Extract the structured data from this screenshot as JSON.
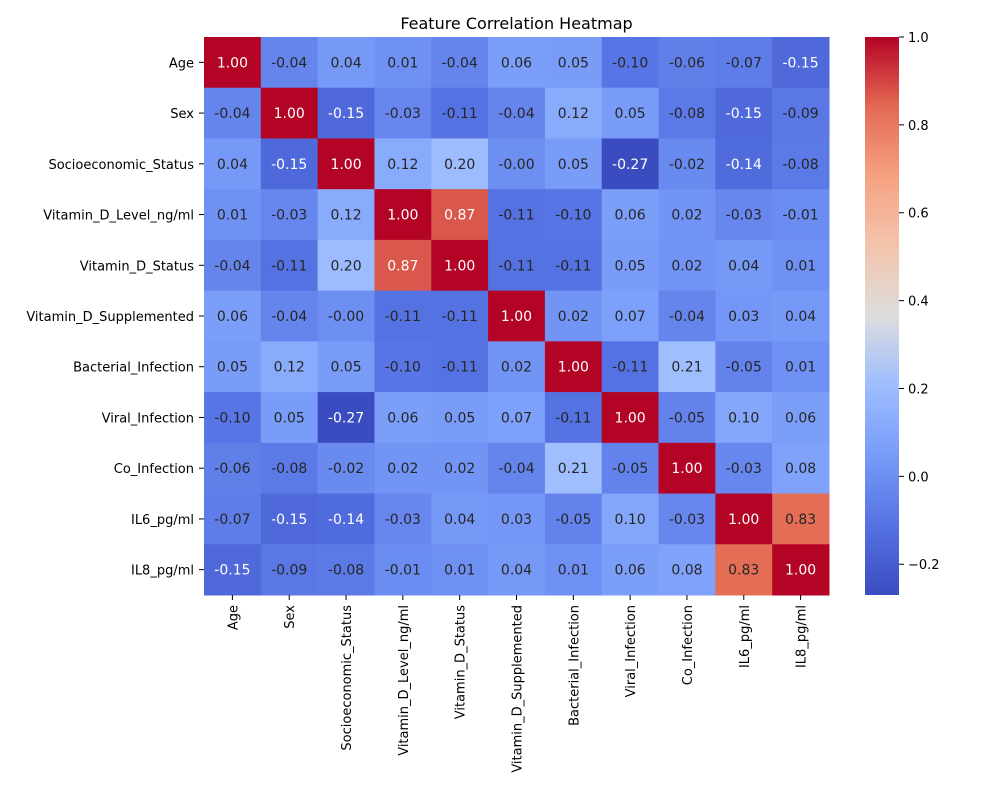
{
  "chart_data": {
    "type": "heatmap",
    "title": "Feature Correlation Heatmap",
    "xlabel": "",
    "ylabel": "",
    "colormap": "coolwarm",
    "grid": false,
    "legend": "colorbar-right",
    "colorbar_range": [
      -0.27,
      1.0
    ],
    "colorbar_ticks": [
      -0.2,
      0.0,
      0.2,
      0.4,
      0.6,
      0.8,
      1.0
    ],
    "colorbar_tick_labels": [
      "−0.2",
      "0.0",
      "0.2",
      "0.4",
      "0.6",
      "0.8",
      "1.0"
    ],
    "x_labels": [
      "Age",
      "Sex",
      "Socioeconomic_Status",
      "Vitamin_D_Level_ng/ml",
      "Vitamin_D_Status",
      "Vitamin_D_Supplemented",
      "Bacterial_Infection",
      "Viral_Infection",
      "Co_Infection",
      "IL6_pg/ml",
      "IL8_pg/ml"
    ],
    "y_labels": [
      "Age",
      "Sex",
      "Socioeconomic_Status",
      "Vitamin_D_Level_ng/ml",
      "Vitamin_D_Status",
      "Vitamin_D_Supplemented",
      "Bacterial_Infection",
      "Viral_Infection",
      "Co_Infection",
      "IL6_pg/ml",
      "IL8_pg/ml"
    ],
    "values": [
      [
        1.0,
        -0.04,
        0.04,
        0.01,
        -0.04,
        0.06,
        0.05,
        -0.1,
        -0.06,
        -0.07,
        -0.15
      ],
      [
        -0.04,
        1.0,
        -0.15,
        -0.03,
        -0.11,
        -0.04,
        0.12,
        0.05,
        -0.08,
        -0.15,
        -0.09
      ],
      [
        0.04,
        -0.15,
        1.0,
        0.12,
        0.2,
        -0.0,
        0.05,
        -0.27,
        -0.02,
        -0.14,
        -0.08
      ],
      [
        0.01,
        -0.03,
        0.12,
        1.0,
        0.87,
        -0.11,
        -0.1,
        0.06,
        0.02,
        -0.03,
        -0.01
      ],
      [
        -0.04,
        -0.11,
        0.2,
        0.87,
        1.0,
        -0.11,
        -0.11,
        0.05,
        0.02,
        0.04,
        0.01
      ],
      [
        0.06,
        -0.04,
        -0.0,
        -0.11,
        -0.11,
        1.0,
        0.02,
        0.07,
        -0.04,
        0.03,
        0.04
      ],
      [
        0.05,
        0.12,
        0.05,
        -0.1,
        -0.11,
        0.02,
        1.0,
        -0.11,
        0.21,
        -0.05,
        0.01
      ],
      [
        -0.1,
        0.05,
        -0.27,
        0.06,
        0.05,
        0.07,
        -0.11,
        1.0,
        -0.05,
        0.1,
        0.06
      ],
      [
        -0.06,
        -0.08,
        -0.02,
        0.02,
        0.02,
        -0.04,
        0.21,
        -0.05,
        1.0,
        -0.03,
        0.08
      ],
      [
        -0.07,
        -0.15,
        -0.14,
        -0.03,
        0.04,
        0.03,
        -0.05,
        0.1,
        -0.03,
        1.0,
        0.83
      ],
      [
        -0.15,
        -0.09,
        -0.08,
        -0.01,
        0.01,
        0.04,
        0.01,
        0.06,
        0.08,
        0.83,
        1.0
      ]
    ],
    "value_labels": [
      [
        "1.00",
        "-0.04",
        "0.04",
        "0.01",
        "-0.04",
        "0.06",
        "0.05",
        "-0.10",
        "-0.06",
        "-0.07",
        "-0.15"
      ],
      [
        "-0.04",
        "1.00",
        "-0.15",
        "-0.03",
        "-0.11",
        "-0.04",
        "0.12",
        "0.05",
        "-0.08",
        "-0.15",
        "-0.09"
      ],
      [
        "0.04",
        "-0.15",
        "1.00",
        "0.12",
        "0.20",
        "-0.00",
        "0.05",
        "-0.27",
        "-0.02",
        "-0.14",
        "-0.08"
      ],
      [
        "0.01",
        "-0.03",
        "0.12",
        "1.00",
        "0.87",
        "-0.11",
        "-0.10",
        "0.06",
        "0.02",
        "-0.03",
        "-0.01"
      ],
      [
        "-0.04",
        "-0.11",
        "0.20",
        "0.87",
        "1.00",
        "-0.11",
        "-0.11",
        "0.05",
        "0.02",
        "0.04",
        "0.01"
      ],
      [
        "0.06",
        "-0.04",
        "-0.00",
        "-0.11",
        "-0.11",
        "1.00",
        "0.02",
        "0.07",
        "-0.04",
        "0.03",
        "0.04"
      ],
      [
        "0.05",
        "0.12",
        "0.05",
        "-0.10",
        "-0.11",
        "0.02",
        "1.00",
        "-0.11",
        "0.21",
        "-0.05",
        "0.01"
      ],
      [
        "-0.10",
        "0.05",
        "-0.27",
        "0.06",
        "0.05",
        "0.07",
        "-0.11",
        "1.00",
        "-0.05",
        "0.10",
        "0.06"
      ],
      [
        "-0.06",
        "-0.08",
        "-0.02",
        "0.02",
        "0.02",
        "-0.04",
        "0.21",
        "-0.05",
        "1.00",
        "-0.03",
        "0.08"
      ],
      [
        "-0.07",
        "-0.15",
        "-0.14",
        "-0.03",
        "0.04",
        "0.03",
        "-0.05",
        "0.10",
        "-0.03",
        "1.00",
        "0.83"
      ],
      [
        "-0.15",
        "-0.09",
        "-0.08",
        "-0.01",
        "0.01",
        "0.04",
        "0.01",
        "0.06",
        "0.08",
        "0.83",
        "1.00"
      ]
    ]
  }
}
